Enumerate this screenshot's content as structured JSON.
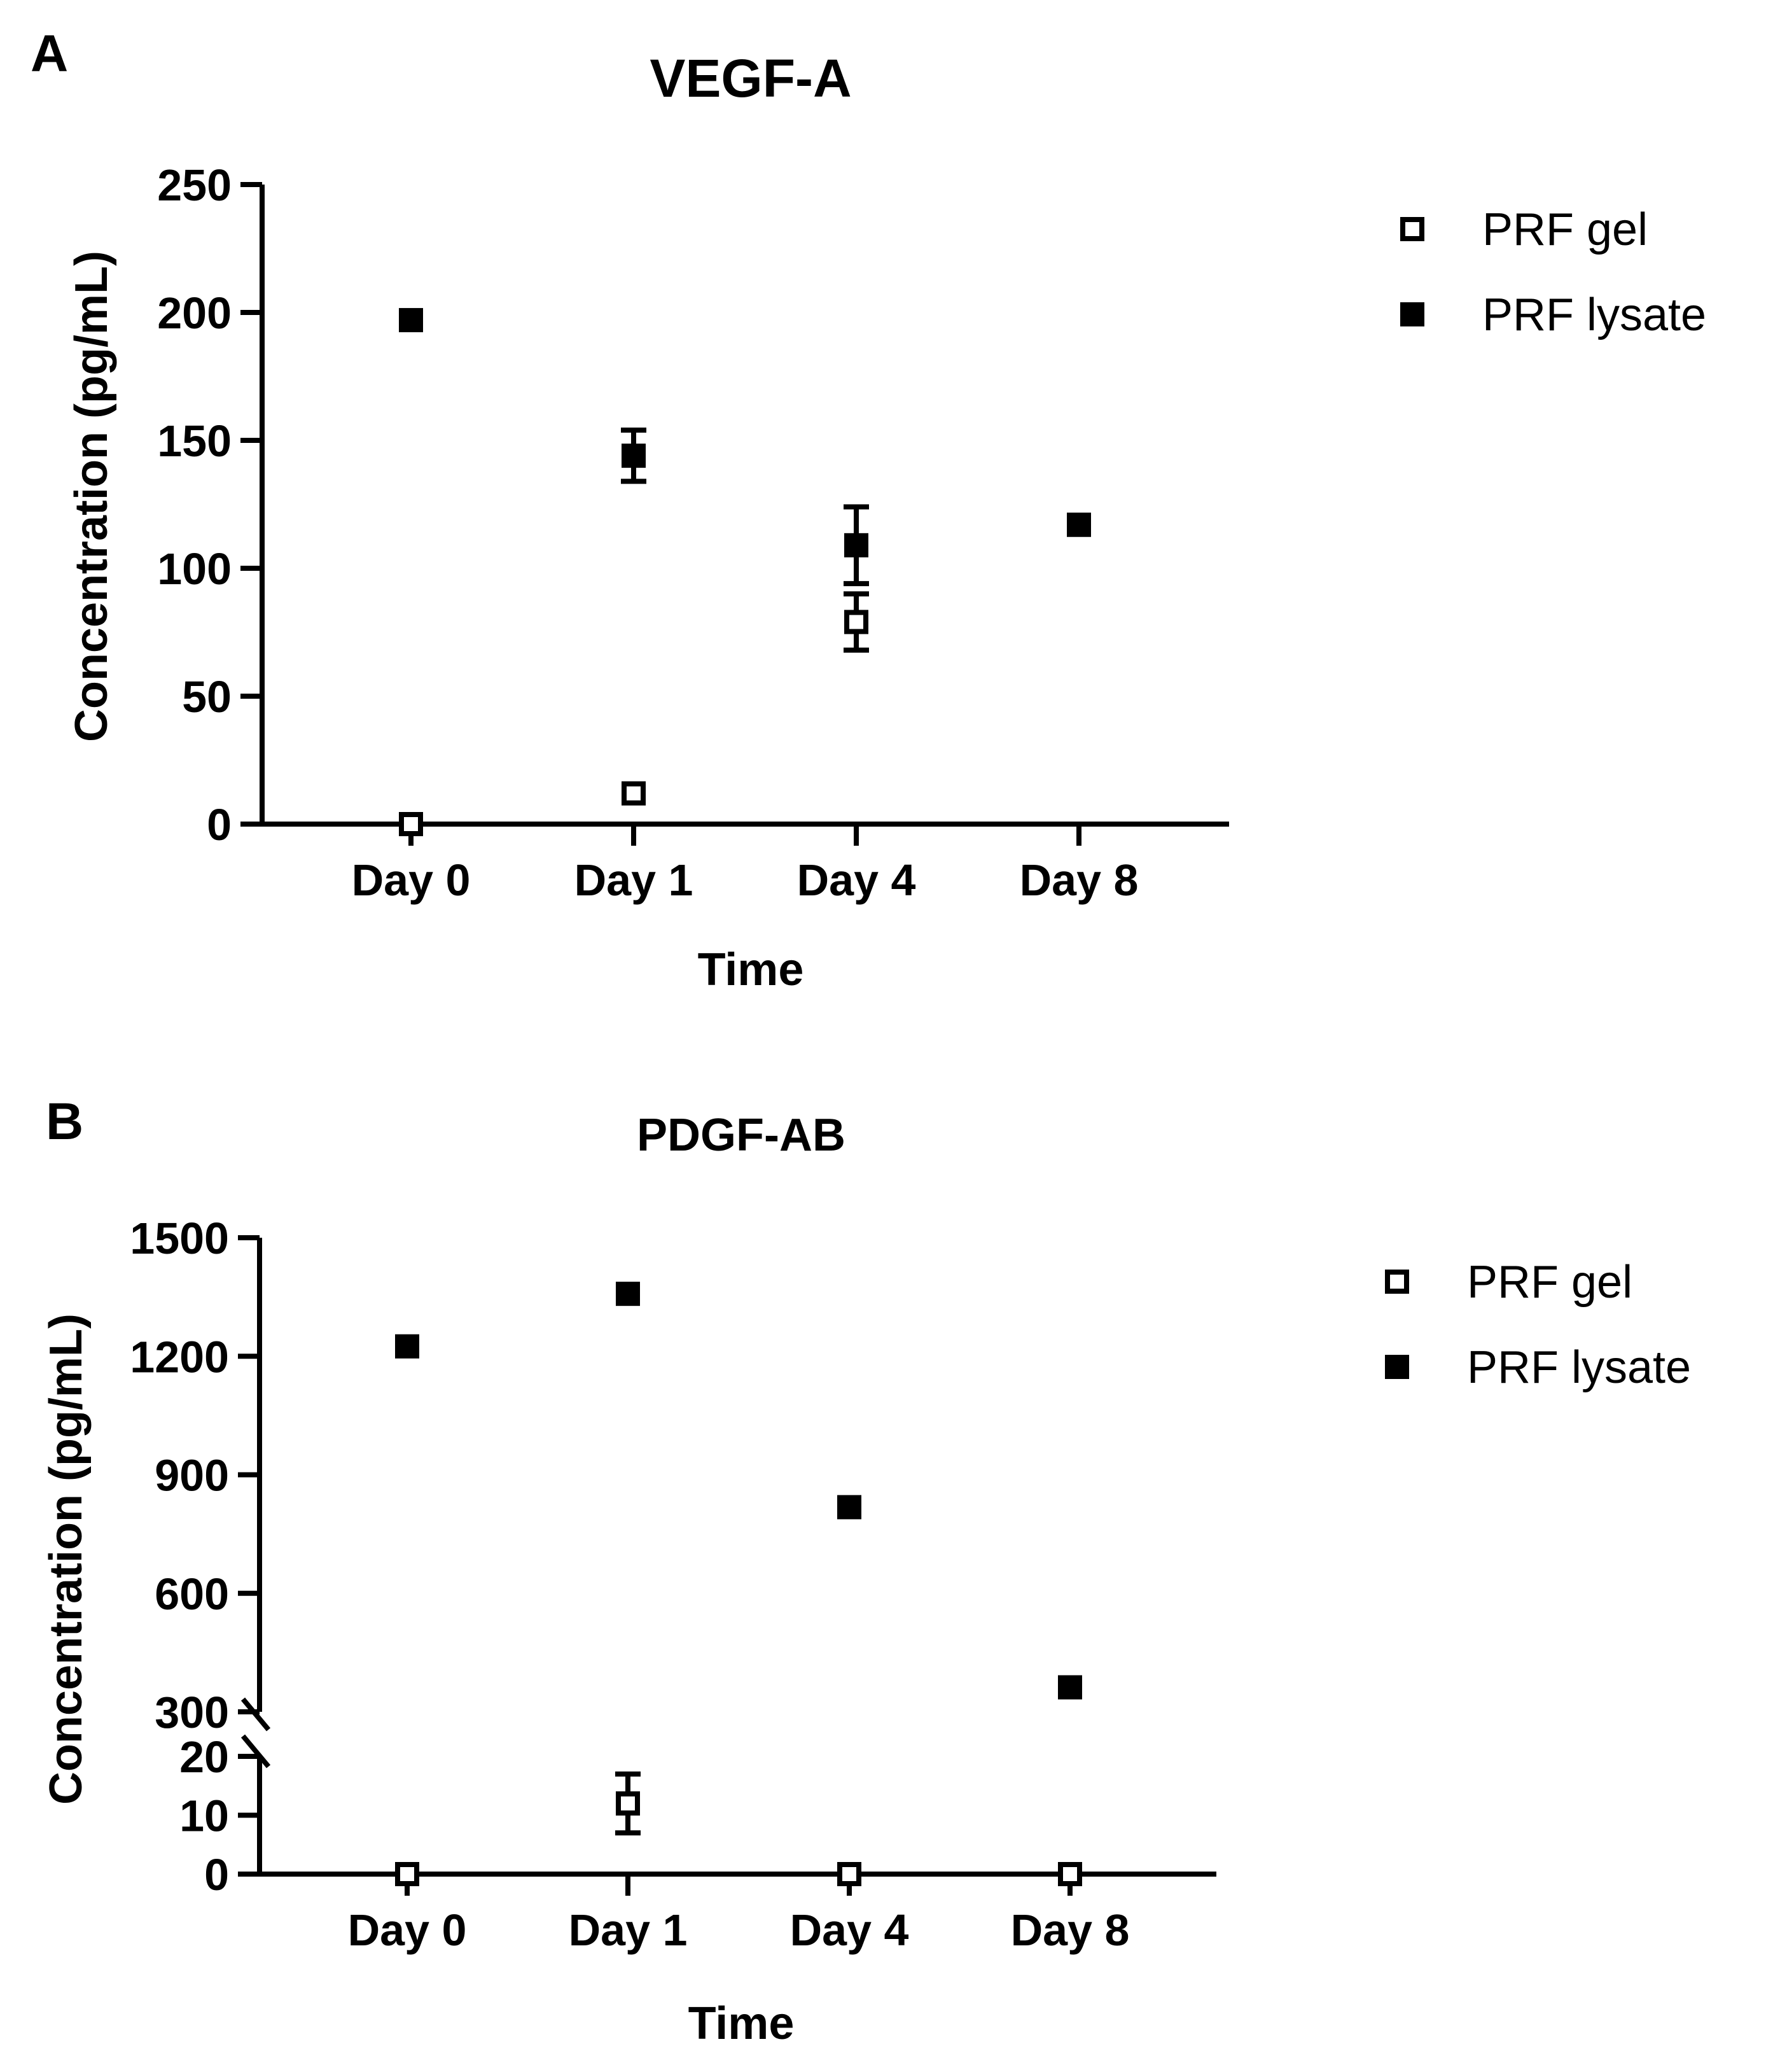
{
  "chart_data": [
    {
      "panel_label": "A",
      "type": "scatter",
      "title": "VEGF-A",
      "xlabel": "Time",
      "ylabel": "Concentration (pg/mL)",
      "categories": [
        "Day 0",
        "Day 1",
        "Day 4",
        "Day 8"
      ],
      "ylim": [
        0,
        250
      ],
      "yticks": [
        "0",
        "50",
        "100",
        "150",
        "200",
        "250"
      ],
      "grid": false,
      "legend_position": "top-right",
      "series": [
        {
          "name": "PRF gel",
          "marker": "open-square",
          "values": [
            0,
            12,
            79,
            117
          ],
          "errors": [
            0,
            0,
            11,
            0
          ]
        },
        {
          "name": "PRF lysate",
          "marker": "filled-square",
          "values": [
            197,
            144,
            109,
            117
          ],
          "errors": [
            0,
            10,
            15,
            0
          ]
        }
      ]
    },
    {
      "panel_label": "B",
      "type": "scatter",
      "title": "PDGF-AB",
      "xlabel": "Time",
      "ylabel": "Concentration (pg/mL)",
      "categories": [
        "Day 0",
        "Day 1",
        "Day 4",
        "Day 8"
      ],
      "axis_break": {
        "lower_range": [
          0,
          20
        ],
        "upper_range": [
          300,
          1500
        ]
      },
      "yticks": [
        "0",
        "10",
        "20",
        "300",
        "600",
        "900",
        "1200",
        "1500"
      ],
      "grid": false,
      "legend_position": "top-right",
      "series": [
        {
          "name": "PRF gel",
          "marker": "open-square",
          "values": [
            0,
            12,
            0,
            0
          ],
          "errors": [
            0,
            5,
            0,
            0
          ]
        },
        {
          "name": "PRF lysate",
          "marker": "filled-square",
          "values": [
            1225,
            1358,
            818,
            362
          ],
          "errors": [
            0,
            0,
            0,
            0
          ]
        }
      ]
    }
  ],
  "colors": {
    "ink": "#000000",
    "background": "#ffffff"
  }
}
